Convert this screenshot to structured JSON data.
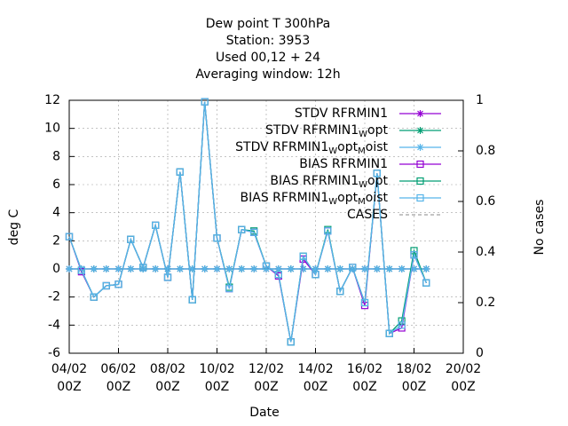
{
  "chart_data": {
    "type": "line",
    "title": [
      "Dew point T 300hPa",
      "Station:      3953",
      "Used  00,12  + 24",
      "Averaging window: 12h"
    ],
    "xlabel": "Date",
    "ylabel": "deg C",
    "y2label": "No cases",
    "x": [
      4,
      4.5,
      5,
      5.5,
      6,
      6.5,
      7,
      7.5,
      8,
      8.5,
      9,
      9.5,
      10,
      10.5,
      11,
      11.5,
      12,
      12.5,
      13,
      13.5,
      14,
      14.5,
      15,
      15.5,
      16,
      16.5,
      17,
      17.5,
      18,
      18.5
    ],
    "xlim": [
      4,
      20
    ],
    "xticks": [
      {
        "value": 4,
        "label": "04/02\n00Z"
      },
      {
        "value": 6,
        "label": "06/02\n00Z"
      },
      {
        "value": 8,
        "label": "08/02\n00Z"
      },
      {
        "value": 10,
        "label": "10/02\n00Z"
      },
      {
        "value": 12,
        "label": "12/02\n00Z"
      },
      {
        "value": 14,
        "label": "14/02\n00Z"
      },
      {
        "value": 16,
        "label": "16/02\n00Z"
      },
      {
        "value": 18,
        "label": "18/02\n00Z"
      },
      {
        "value": 20,
        "label": "20/02\n00Z"
      }
    ],
    "ylim": [
      -6,
      12
    ],
    "yticks": [
      -6,
      -4,
      -2,
      0,
      2,
      4,
      6,
      8,
      10,
      12
    ],
    "y2lim": [
      0,
      1
    ],
    "y2ticks": [
      0,
      0.2,
      0.4,
      0.6,
      0.8,
      1
    ],
    "grid": true,
    "legend": "top-right",
    "series": [
      {
        "name": "STDV RFRMIN1",
        "color": "#9400d3",
        "marker": "asterisk",
        "values": [
          0,
          0,
          0,
          0,
          0,
          0,
          0,
          0,
          0,
          0,
          0,
          0,
          0,
          0,
          0,
          0,
          0,
          0,
          0,
          0,
          0,
          0,
          0,
          0,
          0,
          0,
          0,
          0,
          0,
          0
        ]
      },
      {
        "name": "STDV RFRMIN1 W opt",
        "color": "#009e73",
        "marker": "asterisk",
        "values": [
          0,
          0,
          0,
          0,
          0,
          0,
          0,
          0,
          0,
          0,
          0,
          0,
          0,
          0,
          0,
          0,
          0,
          0,
          0,
          0,
          0,
          0,
          0,
          0,
          0,
          0,
          0,
          0,
          0,
          0
        ]
      },
      {
        "name": "STDV RFRMIN1 W opt M oist",
        "color": "#56b4e9",
        "marker": "asterisk",
        "values": [
          0,
          0,
          0,
          0,
          0,
          0,
          0,
          0,
          0,
          0,
          0,
          0,
          0,
          0,
          0,
          0,
          0,
          0,
          0,
          0,
          0,
          0,
          0,
          0,
          0,
          0,
          0,
          0,
          0,
          0
        ]
      },
      {
        "name": "BIAS RFRMIN1",
        "color": "#9400d3",
        "marker": "square",
        "values": [
          2.3,
          -0.2,
          -2.0,
          -1.2,
          -1.1,
          2.1,
          0.1,
          3.1,
          -0.6,
          6.9,
          -2.2,
          11.9,
          2.2,
          -1.4,
          2.8,
          2.6,
          0.2,
          -0.5,
          -5.2,
          0.7,
          -0.4,
          2.7,
          -1.6,
          0.1,
          -2.6,
          6.8,
          -4.6,
          -4.2,
          1.0,
          -1.0
        ]
      },
      {
        "name": "BIAS RFRMIN1 W opt",
        "color": "#009e73",
        "marker": "square",
        "values": [
          2.3,
          -0.1,
          -2.0,
          -1.2,
          -1.1,
          2.1,
          0.1,
          3.1,
          -0.6,
          6.9,
          -2.2,
          11.9,
          2.2,
          -1.3,
          2.8,
          2.7,
          0.2,
          -0.4,
          -5.2,
          0.9,
          -0.4,
          2.8,
          -1.6,
          0.1,
          -2.4,
          6.8,
          -4.6,
          -3.7,
          1.3,
          -1.0
        ]
      },
      {
        "name": "BIAS RFRMIN1 W opt M oist",
        "color": "#56b4e9",
        "marker": "square",
        "values": [
          2.3,
          -0.1,
          -2.0,
          -1.2,
          -1.1,
          2.1,
          0.1,
          3.1,
          -0.6,
          6.9,
          -2.2,
          11.9,
          2.2,
          -1.4,
          2.8,
          2.6,
          0.2,
          -0.4,
          -5.2,
          0.9,
          -0.4,
          2.7,
          -1.6,
          0.1,
          -2.4,
          6.8,
          -4.6,
          -4.0,
          1.0,
          -1.0
        ]
      },
      {
        "name": "CASES",
        "color": "#a0a0a0",
        "marker": "none",
        "dashed": true,
        "axis": "y2",
        "values": [
          null,
          null,
          null,
          null,
          null,
          null,
          null,
          null,
          null,
          null,
          null,
          null,
          null,
          null,
          null,
          null,
          null,
          null,
          null,
          null,
          null,
          null,
          null,
          null,
          null,
          null,
          null,
          null,
          null,
          null
        ]
      }
    ]
  }
}
